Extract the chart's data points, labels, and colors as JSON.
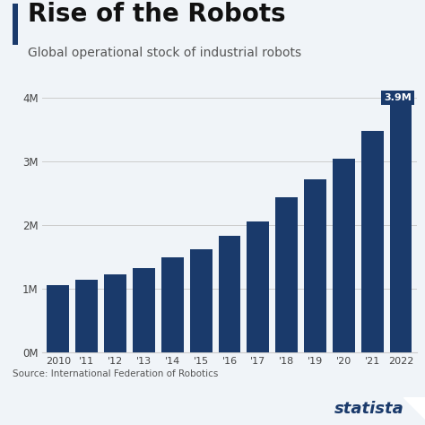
{
  "title": "Rise of the Robots",
  "subtitle": "Global operational stock of industrial robots",
  "source": "Source: International Federation of Robotics",
  "bar_color": "#1a3a6b",
  "background_color": "#f0f4f8",
  "chart_bg": "#f0f4f8",
  "categories": [
    "2010",
    "'11",
    "'12",
    "'13",
    "'14",
    "'15",
    "'16",
    "'17",
    "'18",
    "'19",
    "'20",
    "'21",
    "2022"
  ],
  "values": [
    1060000,
    1140000,
    1235000,
    1330000,
    1490000,
    1630000,
    1830000,
    2060000,
    2440000,
    2720000,
    3050000,
    3480000,
    3900000
  ],
  "ylim": [
    0,
    4000000
  ],
  "yticks": [
    0,
    1000000,
    2000000,
    3000000,
    4000000
  ],
  "ytick_labels": [
    "0M",
    "1M",
    "2M",
    "3M",
    "4M"
  ],
  "annotation_bar": 12,
  "annotation_text": "3.9M",
  "annotation_bg": "#1a3a6b",
  "annotation_fg": "#ffffff",
  "title_fontsize": 20,
  "subtitle_fontsize": 10,
  "tick_fontsize": 8.5,
  "source_fontsize": 7.5,
  "accent_color": "#1a3a6b",
  "statista_color": "#1a3a6b",
  "title_color": "#111111",
  "subtitle_color": "#555555",
  "grid_color": "#cccccc"
}
